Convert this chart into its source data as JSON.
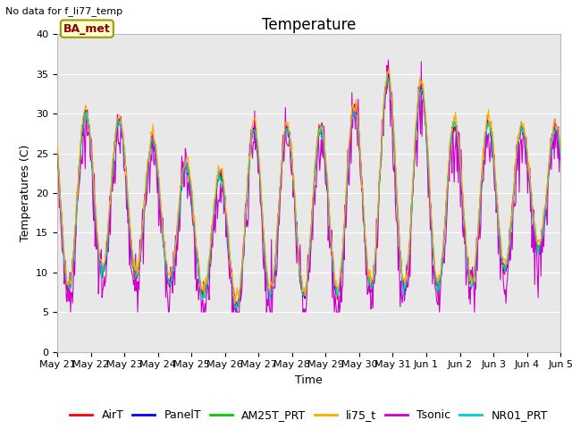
{
  "title": "Temperature",
  "ylabel": "Temperatures (C)",
  "xlabel": "Time",
  "note": "No data for f_li77_temp",
  "ba_met_label": "BA_met",
  "ylim": [
    0,
    40
  ],
  "yticks": [
    0,
    5,
    10,
    15,
    20,
    25,
    30,
    35,
    40
  ],
  "xtick_labels": [
    "May 21",
    "May 22",
    "May 23",
    "May 24",
    "May 25",
    "May 26",
    "May 27",
    "May 28",
    "May 29",
    "May 30",
    "May 31",
    "Jun 1",
    "Jun 2",
    "Jun 3",
    "Jun 4",
    "Jun 5"
  ],
  "series": {
    "AirT": {
      "color": "#ff0000"
    },
    "PanelT": {
      "color": "#0000ff"
    },
    "AM25T_PRT": {
      "color": "#00cc00"
    },
    "li75_t": {
      "color": "#ffaa00"
    },
    "Tsonic": {
      "color": "#cc00cc"
    },
    "NR01_PRT": {
      "color": "#00cccc"
    }
  },
  "bg_color": "#e8e8e8",
  "fig_bg": "#ffffff",
  "title_fontsize": 12,
  "label_fontsize": 9,
  "tick_fontsize": 8,
  "legend_fontsize": 9,
  "n_days": 15,
  "note_fontsize": 8,
  "ba_met_fontsize": 9
}
